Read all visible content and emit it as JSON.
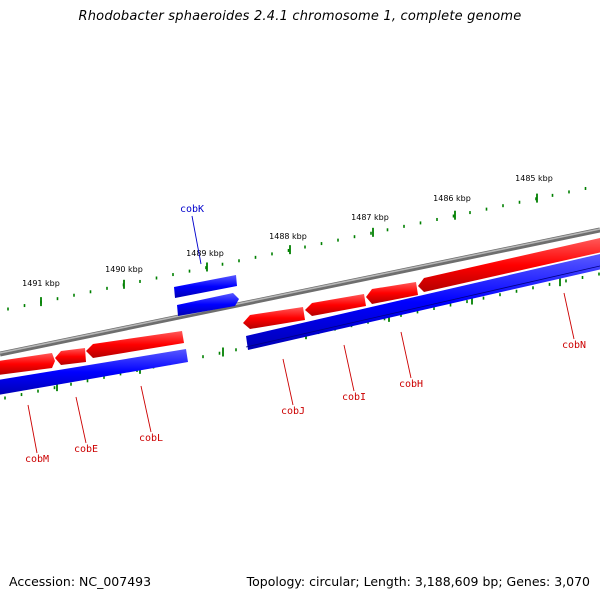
{
  "title": "Rhodobacter sphaeroides 2.4.1 chromosome 1, complete genome",
  "footer": {
    "accession": "Accession: NC_007493",
    "topology": "Topology: circular; Length: 3,188,609 bp; Genes: 3,070"
  },
  "colors": {
    "forward_strand": "#ff0000",
    "reverse_strand": "#0000ff",
    "backbone": "#808080",
    "ticks": "#008000",
    "forward_label": "#cc0000",
    "reverse_label": "#0000cc"
  },
  "scale_ticks": [
    {
      "label": "1491 kbp"
    },
    {
      "label": "1490 kbp"
    },
    {
      "label": "1489 kbp"
    },
    {
      "label": "1488 kbp"
    },
    {
      "label": "1487 kbp"
    },
    {
      "label": "1486 kbp"
    },
    {
      "label": "1485 kbp"
    }
  ],
  "gene_labels": [
    {
      "name": "cobK",
      "strand": "reverse"
    },
    {
      "name": "cobM",
      "strand": "forward"
    },
    {
      "name": "cobE",
      "strand": "forward"
    },
    {
      "name": "cobL",
      "strand": "forward"
    },
    {
      "name": "cobJ",
      "strand": "forward"
    },
    {
      "name": "cobI",
      "strand": "forward"
    },
    {
      "name": "cobH",
      "strand": "forward"
    },
    {
      "name": "cobN",
      "strand": "forward"
    }
  ]
}
